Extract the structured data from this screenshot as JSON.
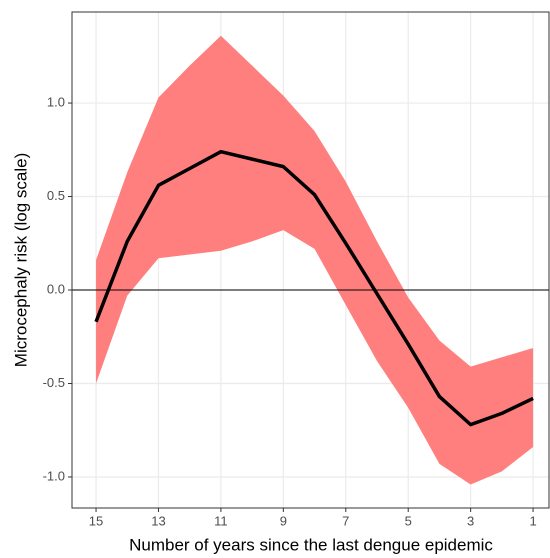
{
  "chart_data": {
    "type": "line",
    "x_label": "Number of years since the last dengue epidemic",
    "y_label": "Microcephaly risk (log scale)",
    "x": [
      15,
      14,
      13,
      12,
      11,
      10,
      9,
      8,
      7,
      6,
      5,
      4,
      3,
      2,
      1
    ],
    "values": [
      -0.17,
      0.26,
      0.56,
      0.65,
      0.74,
      0.7,
      0.66,
      0.51,
      0.25,
      -0.02,
      -0.29,
      -0.57,
      -0.72,
      -0.66,
      -0.58
    ],
    "upper": [
      0.16,
      0.63,
      1.03,
      1.2,
      1.36,
      1.2,
      1.04,
      0.85,
      0.58,
      0.26,
      -0.04,
      -0.27,
      -0.41,
      -0.36,
      -0.31
    ],
    "lower": [
      -0.5,
      -0.03,
      0.17,
      0.19,
      0.21,
      0.26,
      0.32,
      0.22,
      -0.08,
      -0.38,
      -0.63,
      -0.93,
      -1.04,
      -0.97,
      -0.84
    ],
    "color": "#000000",
    "band_color": "#ff7f7f",
    "xlim": [
      15.77,
      0.49
    ],
    "xticks": [
      15,
      13,
      11,
      9,
      7,
      5,
      3,
      1
    ],
    "ylim": [
      -1.166,
      1.487
    ],
    "yticks": [
      {
        "value": -1,
        "label": "-1.0"
      },
      {
        "value": -0.5,
        "label": "-0.5"
      },
      {
        "value": 0,
        "label": "0.0"
      },
      {
        "value": 0.5,
        "label": "0.5"
      },
      {
        "value": 1,
        "label": "1.0"
      }
    ],
    "hline": 0,
    "grid": true
  }
}
